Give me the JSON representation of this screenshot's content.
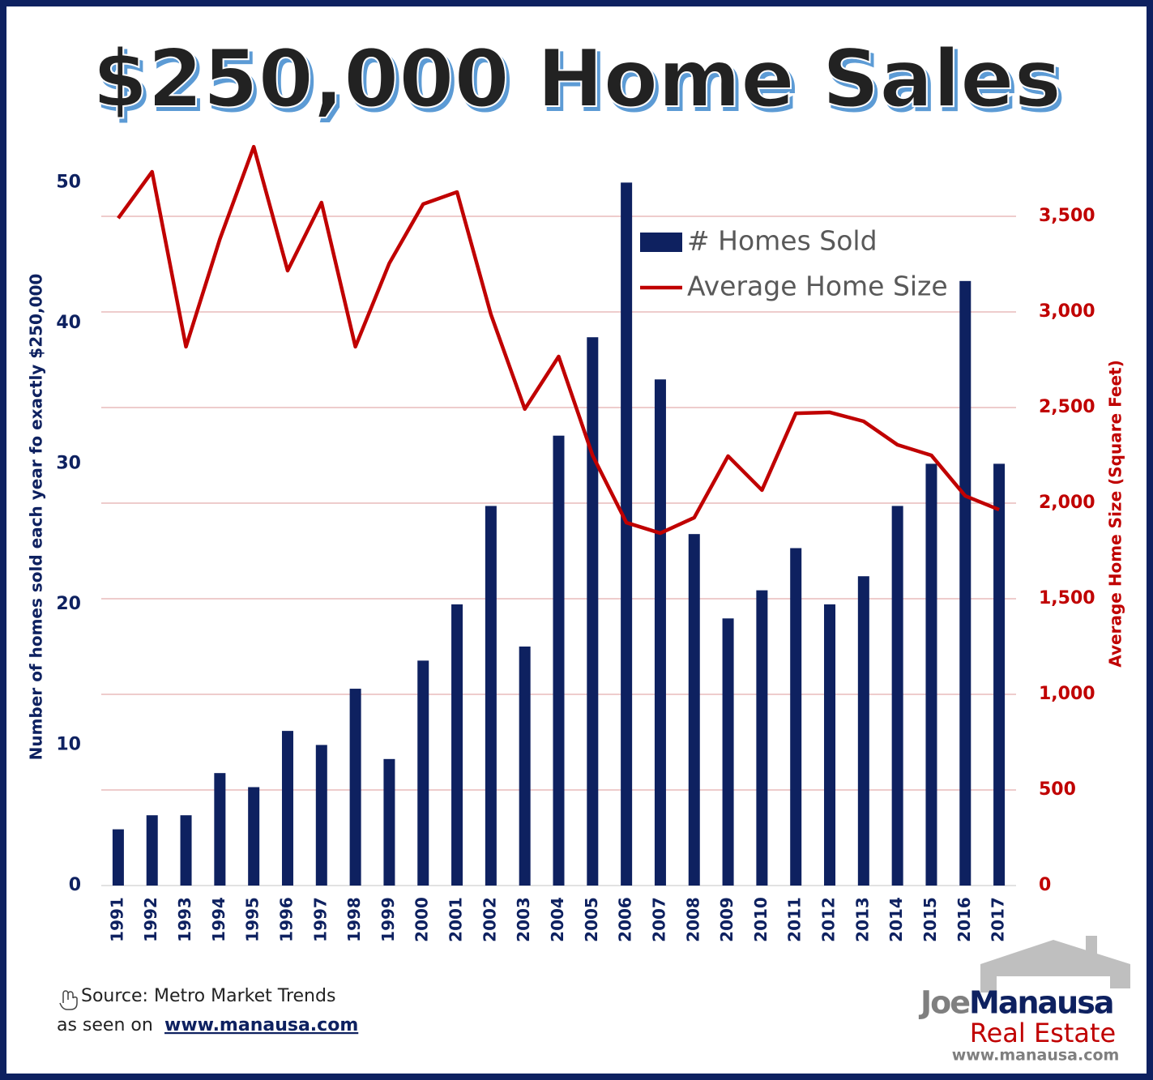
{
  "chart_data": {
    "type": "bar-line",
    "title": "$250,000 Home Sales",
    "categories": [
      "1991",
      "1992",
      "1993",
      "1994",
      "1995",
      "1996",
      "1997",
      "1998",
      "1999",
      "2000",
      "2001",
      "2002",
      "2003",
      "2004",
      "2005",
      "2006",
      "2007",
      "2008",
      "2009",
      "2010",
      "2011",
      "2012",
      "2013",
      "2014",
      "2015",
      "2016",
      "2017"
    ],
    "series": [
      {
        "name": "# Homes Sold",
        "type": "bar",
        "color": "#0e2160",
        "values": [
          4,
          5,
          5,
          8,
          7,
          11,
          10,
          14,
          9,
          16,
          20,
          27,
          17,
          32,
          39,
          50,
          36,
          25,
          19,
          21,
          24,
          20,
          22,
          27,
          30,
          43,
          30
        ]
      },
      {
        "name": "Average Home Size",
        "type": "line",
        "axis": "y2",
        "color": "#c00000",
        "values": [
          3490,
          3733,
          2818,
          3381,
          3864,
          3216,
          3572,
          2818,
          3254,
          3564,
          3627,
          2987,
          2492,
          2767,
          2250,
          1898,
          1843,
          1924,
          2246,
          2068,
          2470,
          2475,
          2428,
          2305,
          2250,
          2038,
          1966
        ]
      }
    ],
    "y_label": "Number of homes sold each year fo exactly $250,000",
    "y2_label": "Average Home Size (Square Feet)",
    "ylim": [
      0,
      54.4
    ],
    "yticks": [
      0,
      10,
      20,
      30,
      40,
      50
    ],
    "y2lim": [
      0,
      4000
    ],
    "y2ticks": [
      0,
      500,
      {
        "value": 1000,
        "label": "1,000"
      },
      {
        "value": 1500,
        "label": "1,500"
      },
      {
        "value": 2000,
        "label": "2,000"
      },
      {
        "value": 2500,
        "label": "2,500"
      },
      {
        "value": 3000,
        "label": "3,000"
      },
      {
        "value": 3500,
        "label": "3,500"
      }
    ],
    "grid": true,
    "grid_color": "#e8bcbc",
    "legend": "top-right",
    "source": "Source: Metro Market Trends",
    "seen_on": "as seen on",
    "site": "www.manausa.com",
    "logo": {
      "first": "Joe",
      "last": "Manausa",
      "line2": "Real Estate",
      "url": "www.manausa.com"
    }
  }
}
